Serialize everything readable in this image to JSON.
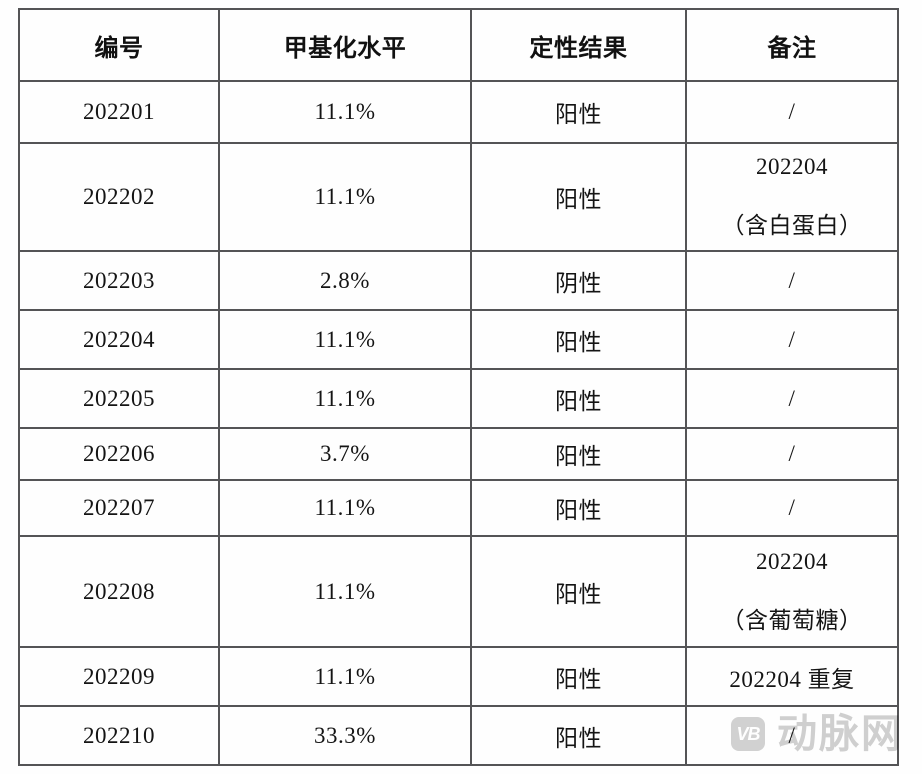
{
  "table": {
    "headers": [
      "编号",
      "甲基化水平",
      "定性结果",
      "备注"
    ],
    "rows": [
      {
        "id": "202201",
        "methylation": "11.1%",
        "result": "阳性",
        "remark": [
          "/"
        ]
      },
      {
        "id": "202202",
        "methylation": "11.1%",
        "result": "阳性",
        "remark": [
          "202204",
          "（含白蛋白）"
        ]
      },
      {
        "id": "202203",
        "methylation": "2.8%",
        "result": "阴性",
        "remark": [
          "/"
        ]
      },
      {
        "id": "202204",
        "methylation": "11.1%",
        "result": "阳性",
        "remark": [
          "/"
        ]
      },
      {
        "id": "202205",
        "methylation": "11.1%",
        "result": "阳性",
        "remark": [
          "/"
        ]
      },
      {
        "id": "202206",
        "methylation": "3.7%",
        "result": "阳性",
        "remark": [
          "/"
        ]
      },
      {
        "id": "202207",
        "methylation": "11.1%",
        "result": "阳性",
        "remark": [
          "/"
        ]
      },
      {
        "id": "202208",
        "methylation": "11.1%",
        "result": "阳性",
        "remark": [
          "202204",
          "（含葡萄糖）"
        ]
      },
      {
        "id": "202209",
        "methylation": "11.1%",
        "result": "阳性",
        "remark": [
          "202204 重复"
        ]
      },
      {
        "id": "202210",
        "methylation": "33.3%",
        "result": "阳性",
        "remark": [
          "/"
        ]
      }
    ]
  },
  "watermark": {
    "logo_text": "VB",
    "site_name": "动脉网",
    "color": "#d0d0d0"
  },
  "colors": {
    "border": "#545456",
    "text": "#141414",
    "background": "#fefefe"
  }
}
